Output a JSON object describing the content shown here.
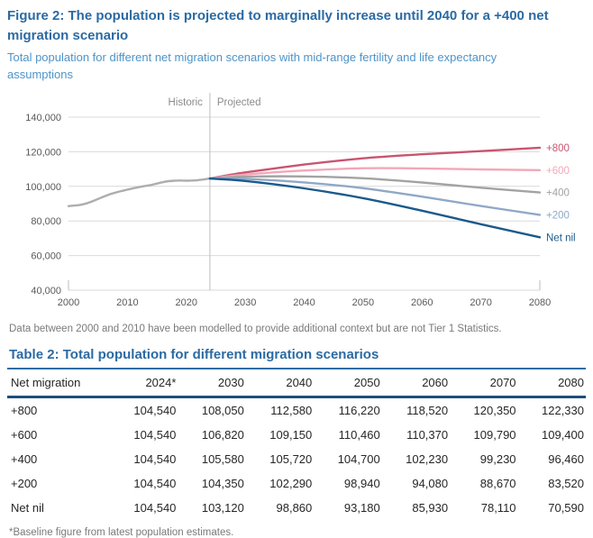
{
  "figure": {
    "title": "Figure 2: The population is projected to marginally increase until 2040 for a +400 net migration scenario",
    "subtitle": "Total population for different net migration scenarios with mid-range fertility and life expectancy assumptions"
  },
  "colors": {
    "title_blue": "#2b6aa3",
    "subtitle_blue": "#4e94c8",
    "rule_blue": "#2e6da4",
    "rule_navy": "#1f4e79",
    "grid": "#d9d9d9",
    "axis_line": "#c6c6c6",
    "axis_text": "#595959",
    "annotation_gray": "#8c8c8c",
    "footnote_gray": "#7a7a7a"
  },
  "chart_data": {
    "type": "line",
    "annotations": {
      "historic_label": "Historic",
      "projected_label": "Projected",
      "divider_year": 2024
    },
    "xlim": [
      2000,
      2080
    ],
    "ylim": [
      40000,
      140000
    ],
    "x_ticks": [
      2000,
      2010,
      2020,
      2030,
      2040,
      2050,
      2060,
      2070,
      2080
    ],
    "y_ticks": [
      {
        "v": 40000,
        "label": "40,000"
      },
      {
        "v": 60000,
        "label": "60,000"
      },
      {
        "v": 80000,
        "label": "80,000"
      },
      {
        "v": 100000,
        "label": "100,000"
      },
      {
        "v": 120000,
        "label": "120,000"
      },
      {
        "v": 140000,
        "label": "140,000"
      }
    ],
    "historic_series": {
      "name": "Historic",
      "color": "#adadad",
      "x": [
        2000,
        2001,
        2002,
        2003,
        2004,
        2005,
        2006,
        2007,
        2008,
        2009,
        2010,
        2011,
        2012,
        2013,
        2014,
        2015,
        2016,
        2017,
        2018,
        2019,
        2020,
        2021,
        2022,
        2023,
        2024
      ],
      "values": [
        88600,
        88900,
        89300,
        90100,
        91300,
        92700,
        94100,
        95400,
        96400,
        97300,
        98100,
        98900,
        99600,
        100200,
        100800,
        101600,
        102400,
        103000,
        103300,
        103400,
        103300,
        103400,
        103600,
        104000,
        104540
      ]
    },
    "projection_x": [
      2024,
      2030,
      2040,
      2050,
      2060,
      2070,
      2080
    ],
    "series": [
      {
        "name": "+800",
        "color": "#c9556f",
        "values": [
          104540,
          108050,
          112580,
          116220,
          118520,
          120350,
          122330
        ]
      },
      {
        "name": "+600",
        "color": "#f2a7b8",
        "values": [
          104540,
          106820,
          109150,
          110460,
          110370,
          109790,
          109400
        ]
      },
      {
        "name": "+400",
        "color": "#a3a3a3",
        "values": [
          104540,
          105580,
          105720,
          104700,
          102230,
          99230,
          96460
        ]
      },
      {
        "name": "+200",
        "color": "#8fa8c7",
        "values": [
          104540,
          104350,
          102290,
          98940,
          94080,
          88670,
          83520
        ]
      },
      {
        "name": "Net nil",
        "color": "#1a5a8c",
        "values": [
          104540,
          103120,
          98860,
          93180,
          85930,
          78110,
          70590
        ]
      }
    ]
  },
  "chart_footnote": "Data between 2000 and 2010 have been modelled to provide additional context but are not Tier 1 Statistics.",
  "table": {
    "title": "Table 2: Total population for different migration scenarios",
    "columns": [
      "Net migration",
      "2024*",
      "2030",
      "2040",
      "2050",
      "2060",
      "2070",
      "2080"
    ],
    "rows": [
      [
        "+800",
        "104,540",
        "108,050",
        "112,580",
        "116,220",
        "118,520",
        "120,350",
        "122,330"
      ],
      [
        "+600",
        "104,540",
        "106,820",
        "109,150",
        "110,460",
        "110,370",
        "109,790",
        "109,400"
      ],
      [
        "+400",
        "104,540",
        "105,580",
        "105,720",
        "104,700",
        "102,230",
        "99,230",
        "96,460"
      ],
      [
        "+200",
        "104,540",
        "104,350",
        "102,290",
        "98,940",
        "94,080",
        "88,670",
        "83,520"
      ],
      [
        "Net nil",
        "104,540",
        "103,120",
        "98,860",
        "93,180",
        "85,930",
        "78,110",
        "70,590"
      ]
    ],
    "footnote": "*Baseline figure from latest population estimates."
  }
}
